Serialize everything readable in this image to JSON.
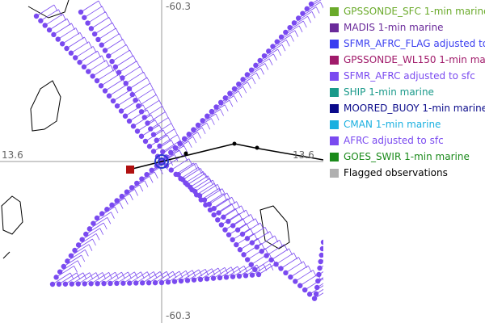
{
  "map": {
    "coordinate_labels": {
      "top": "-60.3",
      "bottom": "-60.3",
      "left": "13.6",
      "right": "13.6"
    }
  },
  "legend": {
    "items": [
      {
        "label": "GPSSONDE_SFC 1-min marine",
        "color": "#6aaa2a"
      },
      {
        "label": "MADIS 1-min marine",
        "color": "#6a2a9a"
      },
      {
        "label": "SFMR_AFRC_FLAG adjusted to",
        "color": "#3a3ef0"
      },
      {
        "label": "GPSSONDE_WL150 1-min mar",
        "color": "#a01a6a"
      },
      {
        "label": "SFMR_AFRC adjusted to sfc",
        "color": "#7a4af0"
      },
      {
        "label": "SHIP 1-min marine",
        "color": "#1a9a8a"
      },
      {
        "label": "MOORED_BUOY 1-min marine",
        "color": "#0a0a8a"
      },
      {
        "label": "CMAN 1-min marine",
        "color": "#1ab0e0"
      },
      {
        "label": "AFRC adjusted to sfc",
        "color": "#7a4af0"
      },
      {
        "label": "GOES_SWIR 1-min marine",
        "color": "#1a8a1a"
      },
      {
        "label": "Flagged observations",
        "color": "#b0b0b0"
      }
    ]
  }
}
